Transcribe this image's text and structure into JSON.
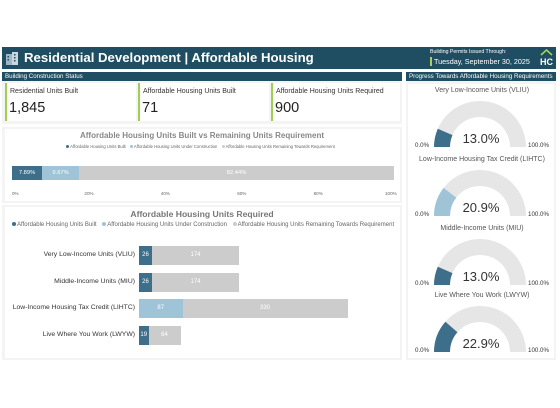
{
  "header": {
    "title": "Residential Development | Affordable Housing",
    "permits_label": "Building Permits Issued Through:",
    "date": "Tuesday, September 30, 2025",
    "logo_text": "HC",
    "colors": {
      "bar": "#1f4e62",
      "accent": "#a8d05a"
    }
  },
  "construction_status": {
    "section_title": "Building Construction Status",
    "kpis": [
      {
        "label": "Residential Units Built",
        "value": "1,845"
      },
      {
        "label": "Affordable Housing Units Built",
        "value": "71"
      },
      {
        "label": "Affordable Housing Units Required",
        "value": "900"
      }
    ]
  },
  "progress": {
    "section_title": "Progress Towards Affordable Housing Requirements"
  },
  "colors": {
    "built": "#3d6e8a",
    "under_construction": "#9fc4d8",
    "remaining": "#cccccc",
    "gauge_track": "#e6e6e6"
  },
  "chart_data": [
    {
      "type": "bar",
      "orientation": "horizontal",
      "stacked": true,
      "title": "Affordable Housing Units Built vs Remaining Units Requirement",
      "legend": [
        "Affordable Housing Units Built",
        "Affordable Housing Units Under Construction",
        "Affordable Housing Units Remaining Towards Requirement"
      ],
      "legend_position": "top",
      "series": [
        {
          "name": "Affordable Housing Units Built",
          "values": [
            7.89
          ],
          "label": "7.89%"
        },
        {
          "name": "Affordable Housing Units Under Construction",
          "values": [
            9.67
          ],
          "label": "9.67%"
        },
        {
          "name": "Affordable Housing Units Remaining Towards Requirement",
          "values": [
            82.44
          ],
          "label": "82.44%"
        }
      ],
      "xlim": [
        0,
        100
      ],
      "xticks": [
        "0%",
        "20%",
        "40%",
        "60%",
        "80%",
        "100%"
      ],
      "grid": false
    },
    {
      "type": "bar",
      "orientation": "horizontal",
      "stacked": true,
      "title": "Affordable Housing Units Required",
      "legend_position": "top",
      "categories": [
        "Very Low-Income Units (VLIU)",
        "Middle-Income Units (MIU)",
        "Low-Income Housing Tax Credit (LIHTC)",
        "Live Where You Work (LWYW)"
      ],
      "series": [
        {
          "name": "Affordable Housing Units Built",
          "values": [
            26,
            26,
            0,
            19
          ]
        },
        {
          "name": "Affordable Housing Units Under Construction",
          "values": [
            0,
            0,
            87,
            0
          ]
        },
        {
          "name": "Affordable Housing Units Remaining Towards Requirement",
          "values": [
            174,
            174,
            330,
            64
          ]
        }
      ],
      "grid": false
    },
    {
      "type": "gauge",
      "title": "Progress Towards Affordable Housing Requirements",
      "gauges": [
        {
          "label": "Very Low-Income Units (VLIU)",
          "value": 13.0,
          "display": "13.0%",
          "min": "0.0%",
          "max": "100.0%",
          "color": "#3d6e8a"
        },
        {
          "label": "Low-Income Housing Tax Credit (LIHTC)",
          "value": 20.9,
          "display": "20.9%",
          "min": "0.0%",
          "max": "100.0%",
          "color": "#9fc4d8"
        },
        {
          "label": "Middle-Income Units (MIU)",
          "value": 13.0,
          "display": "13.0%",
          "min": "0.0%",
          "max": "100.0%",
          "color": "#3d6e8a"
        },
        {
          "label": "Live Where You Work (LWYW)",
          "value": 22.9,
          "display": "22.9%",
          "min": "0.0%",
          "max": "100.0%",
          "color": "#3d6e8a"
        }
      ]
    }
  ]
}
